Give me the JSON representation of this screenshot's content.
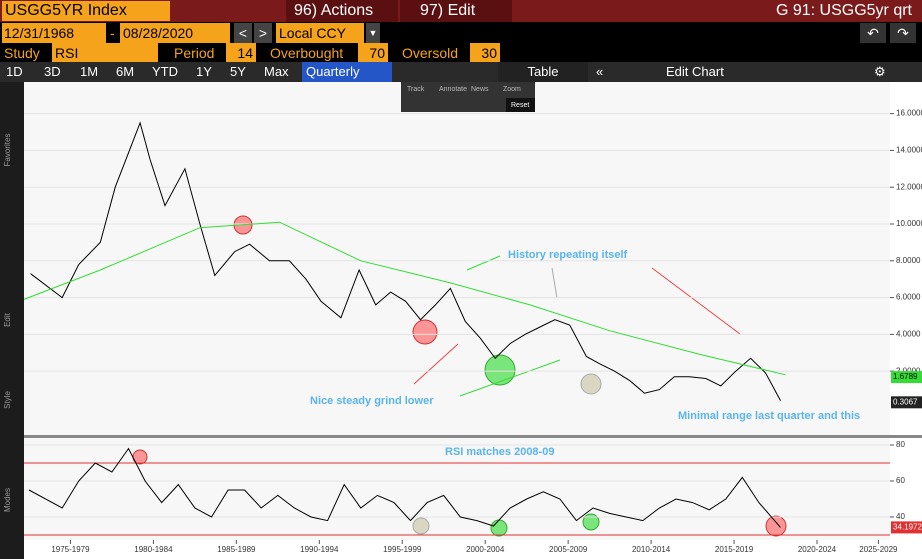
{
  "header": {
    "ticker": "USGG5YR Index",
    "actions": "96) Actions",
    "edit": "97) Edit",
    "title": "G 91: USGG5yr qrt"
  },
  "controls": {
    "start": "12/31/1968",
    "separator": "-",
    "end": "08/28/2020",
    "currency": "Local CCY",
    "study_label": "Study",
    "study": "RSI",
    "period_label": "Period",
    "period": "14",
    "overbought_label": "Overbought",
    "overbought": "70",
    "oversold_label": "Oversold",
    "oversold": "30"
  },
  "tabs": [
    "1D",
    "3D",
    "1M",
    "6M",
    "YTD",
    "1Y",
    "5Y",
    "Max",
    "Quarterly"
  ],
  "table": "Table",
  "edit_chart": "Edit Chart",
  "chart_tools": [
    "Track",
    "Annotate",
    "News",
    "Zoom"
  ],
  "reset": "Reset",
  "side_labels": [
    "Favorites",
    "Edit",
    "Style",
    "Modes"
  ],
  "chart_data": [
    {
      "type": "line",
      "xlim": [
        1974.7,
        2026.9
      ],
      "ylim": [
        -1.47,
        17.72
      ],
      "yticks": [
        {
          "value": 2,
          "label": "2.0000"
        },
        {
          "value": 4,
          "label": "4.0000"
        },
        {
          "value": 6,
          "label": "6.0000"
        },
        {
          "value": 8,
          "label": "8.0000"
        },
        {
          "value": 10,
          "label": "10.0000"
        },
        {
          "value": 12,
          "label": "12.0000"
        },
        {
          "value": 14,
          "label": "14.0000"
        },
        {
          "value": 16,
          "label": "16.0000"
        }
      ],
      "series": [
        {
          "color": "#000000",
          "x": [
            1975.1,
            1977,
            1978,
            1979.3,
            1980.2,
            1981.7,
            1982.3,
            1983.2,
            1984.4,
            1985.3,
            1986.2,
            1987.4,
            1988.3,
            1989.5,
            1990.7,
            1991.7,
            1992.6,
            1993.8,
            1994.9,
            1995.9,
            1996.8,
            1997.7,
            1998.6,
            1999.5,
            2000.4,
            2001.3,
            2002.2,
            2003.1,
            2004,
            2004.9,
            2005.8,
            2006.7,
            2007.6,
            2008.6,
            2009.4,
            2010.3,
            2011.2,
            2012.1,
            2013,
            2013.9,
            2014.8,
            2015.8,
            2016.7,
            2017.6,
            2018.5,
            2019.4,
            2020.3
          ],
          "values": [
            7.3,
            6.0,
            7.8,
            9.0,
            12,
            15.5,
            13.5,
            11,
            13,
            10,
            7.2,
            8.5,
            8.9,
            8.0,
            8.0,
            7.0,
            5.8,
            4.9,
            7.5,
            5.6,
            6.3,
            5.8,
            4.8,
            5.6,
            6.5,
            4.7,
            3.8,
            2.7,
            3.5,
            4.0,
            4.4,
            4.8,
            4.5,
            2.8,
            2.4,
            2.0,
            1.5,
            0.8,
            1.0,
            1.7,
            1.7,
            1.6,
            1.2,
            2.0,
            2.7,
            1.9,
            0.4
          ]
        },
        {
          "color": "#33dd33",
          "x": [
            1974.7,
            1979.3,
            1985.3,
            1990.1,
            1995,
            2000.4,
            2005.2,
            2010,
            2015.5,
            2020.6
          ],
          "values": [
            5.9,
            7.5,
            9.8,
            10.1,
            8.0,
            6.8,
            5.6,
            4.2,
            2.9,
            1.8
          ]
        }
      ],
      "last_value_labels": [
        {
          "value": 1.6789,
          "label": "1.6789",
          "color": "#33dd33"
        },
        {
          "value": 0.3067,
          "label": "0.3067",
          "color": "#ffffff"
        }
      ],
      "annotations": [
        "History repeating itself",
        "Nice steady grind lower",
        "Minimal range last quarter and this"
      ]
    },
    {
      "type": "line",
      "xlim": [
        1974.7,
        2026.9
      ],
      "ylim": [
        27.2,
        83.9
      ],
      "yticks": [
        40,
        60,
        80
      ],
      "levels": [
        70,
        30
      ],
      "xticks": [
        {
          "value": 1977.5,
          "label": "1975-1979"
        },
        {
          "value": 1982.5,
          "label": "1980-1984"
        },
        {
          "value": 1987.5,
          "label": "1985-1989"
        },
        {
          "value": 1992.5,
          "label": "1990-1994"
        },
        {
          "value": 1997.5,
          "label": "1995-1999"
        },
        {
          "value": 2002.5,
          "label": "2000-2004"
        },
        {
          "value": 2007.5,
          "label": "2005-2009"
        },
        {
          "value": 2012.5,
          "label": "2010-2014"
        },
        {
          "value": 2017.5,
          "label": "2015-2019"
        },
        {
          "value": 2022.5,
          "label": "2020-2024"
        },
        {
          "value": 2026.2,
          "label": "2025-2029"
        }
      ],
      "series": [
        {
          "color": "#000000",
          "x": [
            1975,
            1977,
            1978,
            1979,
            1980,
            1981,
            1982,
            1983,
            1984,
            1985,
            1986,
            1987,
            1988,
            1989,
            1990,
            1991,
            1992,
            1993,
            1994,
            1995,
            1996,
            1997,
            1998,
            1999,
            2000,
            2001,
            2002,
            2003,
            2004,
            2005,
            2006,
            2007,
            2008,
            2009,
            2010,
            2011,
            2012,
            2013,
            2014,
            2015,
            2016,
            2017,
            2018,
            2019,
            2020.3
          ],
          "values": [
            55,
            45,
            60,
            70,
            65,
            78,
            60,
            48,
            58,
            45,
            40,
            55,
            55,
            45,
            52,
            45,
            40,
            38,
            58,
            45,
            52,
            48,
            38,
            48,
            52,
            40,
            38,
            35,
            45,
            50,
            54,
            50,
            38,
            45,
            42,
            40,
            38,
            45,
            50,
            48,
            44,
            50,
            62,
            48,
            34.2
          ]
        }
      ],
      "last_value_labels": [
        {
          "value": 34.1972,
          "label": "34.1972",
          "color": "#ffffff"
        }
      ],
      "annotations": [
        "RSI matches 2008-09"
      ]
    }
  ]
}
